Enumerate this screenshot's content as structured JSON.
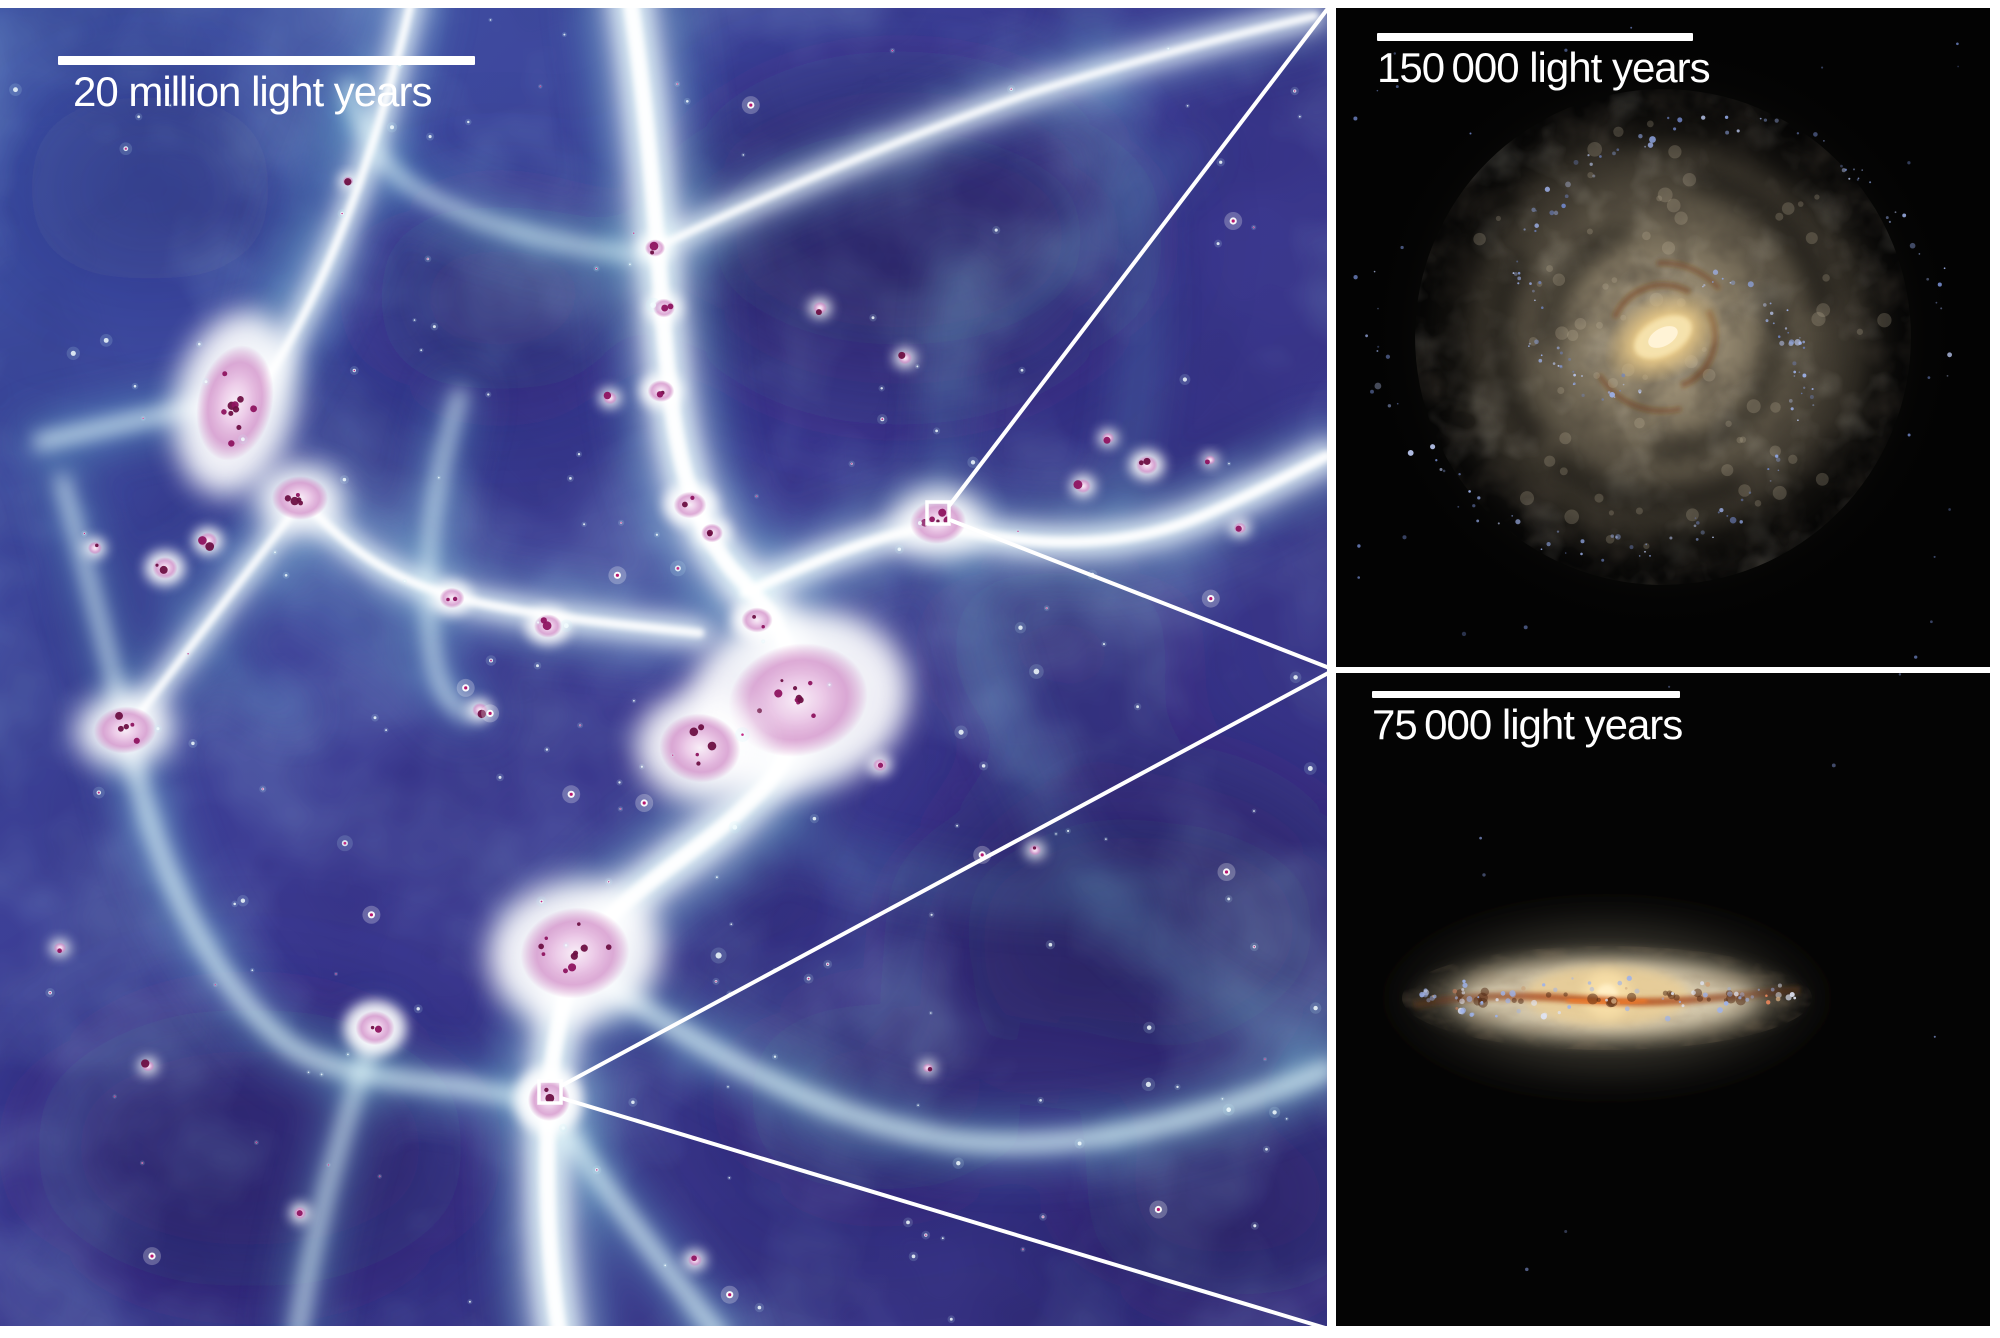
{
  "panels": {
    "cosmic_web": {
      "scale_bar": {
        "label": "20 million light years"
      }
    },
    "galaxy_face_on": {
      "scale_bar": {
        "label": "150 000 light years"
      }
    },
    "galaxy_edge_on": {
      "scale_bar": {
        "label": "75 000 light years"
      }
    }
  },
  "palette": {
    "figure_border": "#ffffff",
    "scale_bar_color": "#ffffff",
    "connector_color": "#ffffff",
    "web_background": "#3d3f95",
    "web_void": "#241b58",
    "web_filament_cyan": "#73d2e1",
    "web_filament_pale": "#e1f8fa",
    "web_filament_white": "#ffffff",
    "web_cluster_pink": "#e3b9de",
    "web_cluster_core": "#6d1043",
    "web_speck_magenta": "#c31f7e",
    "galaxy_background": "#030303",
    "galaxy_disk_beige": "#c9b897",
    "galaxy_core_yellow": "#f6e3ae",
    "galaxy_core_bright": "#fff3d6",
    "galaxy_speckle_blue": "#8ea4e0",
    "edge_disk_cream": "#d7cbaf",
    "edge_dust_lane": "#d05a1e",
    "edge_dust_dark": "#5e3419"
  }
}
